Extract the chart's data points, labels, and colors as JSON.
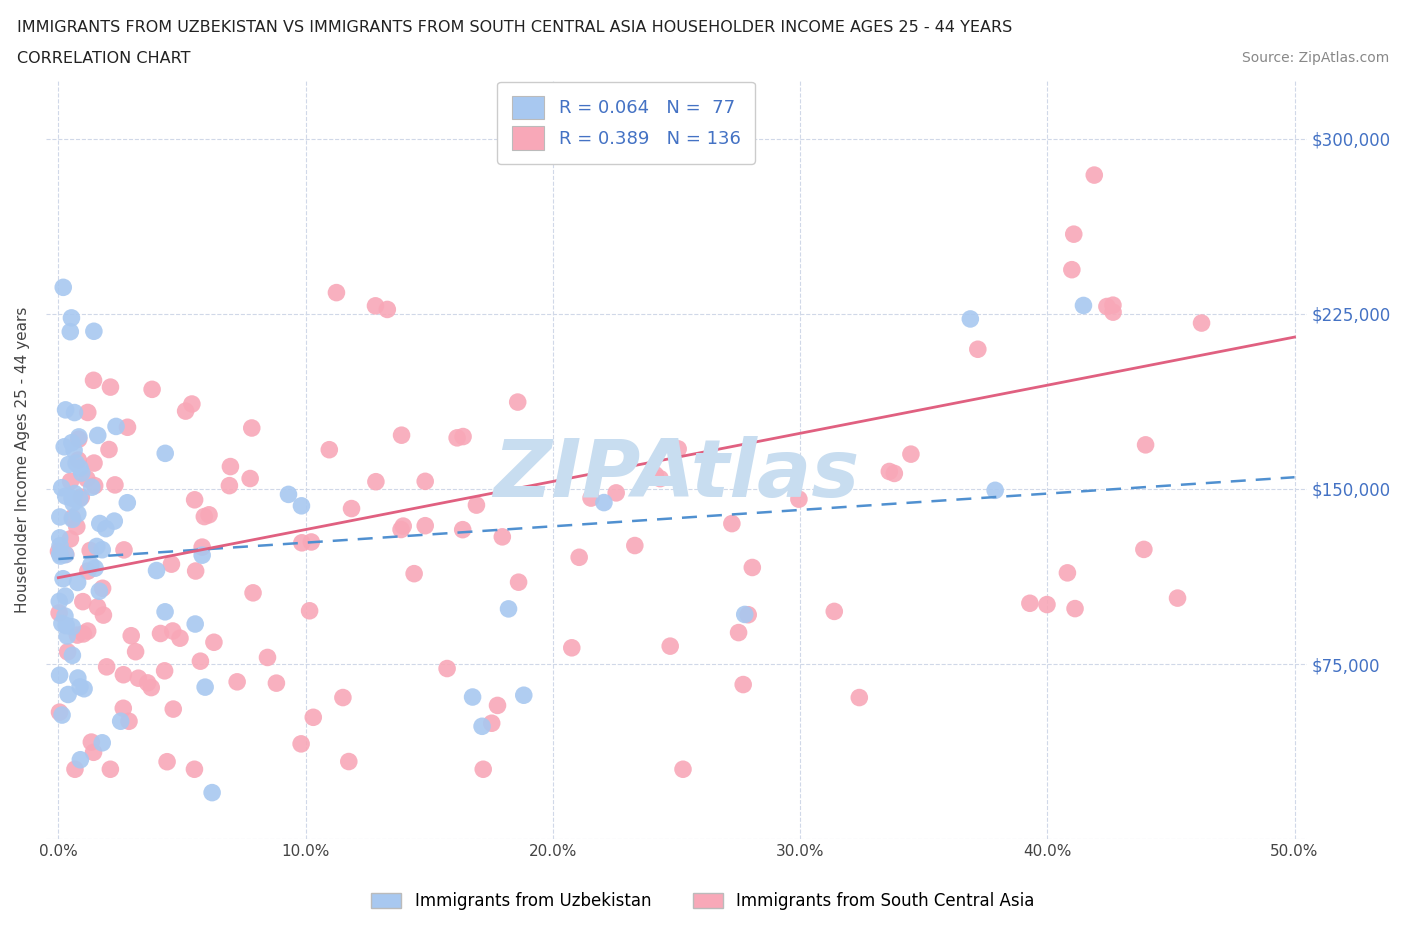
{
  "title_line1": "IMMIGRANTS FROM UZBEKISTAN VS IMMIGRANTS FROM SOUTH CENTRAL ASIA HOUSEHOLDER INCOME AGES 25 - 44 YEARS",
  "title_line2": "CORRELATION CHART",
  "source_text": "Source: ZipAtlas.com",
  "ylabel": "Householder Income Ages 25 - 44 years",
  "xlim": [
    -0.005,
    0.505
  ],
  "ylim": [
    0,
    325000
  ],
  "xtick_labels": [
    "0.0%",
    "10.0%",
    "20.0%",
    "30.0%",
    "40.0%",
    "50.0%"
  ],
  "xtick_vals": [
    0.0,
    0.1,
    0.2,
    0.3,
    0.4,
    0.5
  ],
  "ytick_vals": [
    0,
    75000,
    150000,
    225000,
    300000
  ],
  "right_ytick_labels": [
    "$75,000",
    "$150,000",
    "$225,000",
    "$300,000"
  ],
  "right_ytick_vals": [
    75000,
    150000,
    225000,
    300000
  ],
  "R_uzbekistan": 0.064,
  "N_uzbekistan": 77,
  "R_southcentral": 0.389,
  "N_southcentral": 136,
  "color_uzbekistan": "#a8c8f0",
  "color_southcentral": "#f8a8b8",
  "line_color_uzbekistan": "#5090d0",
  "line_color_southcentral": "#e06080",
  "legend_color_text": "#4472c4",
  "watermark_color": "#c8ddf0",
  "grid_color": "#d0d8e8",
  "background_color": "#ffffff",
  "seed_uz": 17,
  "seed_sc": 99
}
